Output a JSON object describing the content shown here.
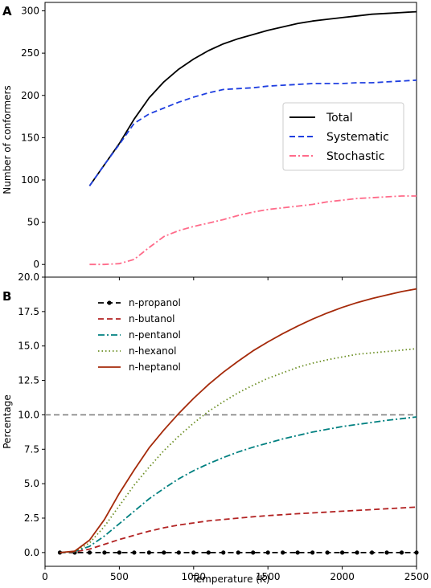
{
  "chart_data": [
    {
      "panel": "A",
      "type": "line",
      "title": "",
      "xlabel": "",
      "ylabel": "Number of conformers",
      "xlim": [
        0,
        2500
      ],
      "ylim": [
        -15,
        310
      ],
      "yticks": [
        0,
        50,
        100,
        150,
        200,
        250,
        300
      ],
      "xticks_labeled": false,
      "grid": false,
      "legend_position": "center-right",
      "series": [
        {
          "name": "Total",
          "color": "#000000",
          "dash": "solid",
          "x": [
            300,
            400,
            500,
            600,
            700,
            800,
            900,
            1000,
            1100,
            1200,
            1300,
            1400,
            1500,
            1600,
            1700,
            1800,
            1900,
            2000,
            2100,
            2200,
            2300,
            2400,
            2500
          ],
          "y": [
            93,
            118,
            143,
            172,
            197,
            216,
            231,
            243,
            253,
            261,
            267,
            272,
            277,
            281,
            285,
            288,
            290,
            292,
            294,
            296,
            297,
            298,
            299
          ]
        },
        {
          "name": "Systematic",
          "color": "#1f3fe0",
          "dash": "dashed",
          "x": [
            300,
            400,
            500,
            600,
            700,
            800,
            900,
            1000,
            1100,
            1200,
            1300,
            1400,
            1500,
            1600,
            1700,
            1800,
            1900,
            2000,
            2100,
            2200,
            2300,
            2400,
            2500
          ],
          "y": [
            93,
            118,
            142,
            167,
            178,
            185,
            192,
            198,
            203,
            207,
            208,
            209,
            211,
            212,
            213,
            214,
            214,
            214,
            215,
            215,
            216,
            217,
            218
          ]
        },
        {
          "name": "Stochastic",
          "color": "#ff6b8a",
          "dash": "dashdot",
          "x": [
            300,
            400,
            500,
            600,
            700,
            800,
            900,
            1000,
            1100,
            1200,
            1300,
            1400,
            1500,
            1600,
            1700,
            1800,
            1900,
            2000,
            2100,
            2200,
            2300,
            2400,
            2500
          ],
          "y": [
            0,
            0,
            1,
            6,
            20,
            33,
            40,
            45,
            49,
            53,
            58,
            62,
            65,
            67,
            69,
            71,
            74,
            76,
            78,
            79,
            80,
            81,
            81
          ]
        }
      ]
    },
    {
      "panel": "B",
      "type": "line",
      "title": "",
      "xlabel": "Temperature (K)",
      "ylabel": "Percentage",
      "xlim": [
        0,
        2500
      ],
      "ylim": [
        -1,
        20
      ],
      "xticks": [
        0,
        500,
        1000,
        1500,
        2000,
        2500
      ],
      "yticks": [
        "0.0",
        "2.5",
        "5.0",
        "7.5",
        "10.0",
        "12.5",
        "15.0",
        "17.5",
        "20.0"
      ],
      "grid": false,
      "legend_position": "upper-left",
      "reference_line": {
        "y": 10,
        "color": "#808080",
        "dash": "dashed"
      },
      "series": [
        {
          "name": "n-propanol",
          "color": "#000000",
          "dash": "dashed",
          "marker": "circle",
          "x": [
            100,
            200,
            300,
            400,
            500,
            600,
            700,
            800,
            900,
            1000,
            1100,
            1200,
            1300,
            1400,
            1500,
            1600,
            1700,
            1800,
            1900,
            2000,
            2100,
            2200,
            2300,
            2400,
            2500
          ],
          "y": [
            0,
            0,
            0,
            0,
            0,
            0,
            0,
            0,
            0,
            0,
            0,
            0,
            0,
            0,
            0,
            0,
            0,
            0,
            0,
            0,
            0,
            0,
            0,
            0,
            0
          ]
        },
        {
          "name": "n-butanol",
          "color": "#b22222",
          "dash": "dashed",
          "x": [
            100,
            200,
            300,
            400,
            500,
            600,
            700,
            800,
            900,
            1000,
            1100,
            1200,
            1300,
            1400,
            1500,
            1600,
            1700,
            1800,
            1900,
            2000,
            2100,
            2200,
            2300,
            2400,
            2500
          ],
          "y": [
            0,
            0.05,
            0.25,
            0.6,
            0.95,
            1.25,
            1.55,
            1.8,
            2.0,
            2.15,
            2.3,
            2.4,
            2.5,
            2.6,
            2.68,
            2.75,
            2.82,
            2.88,
            2.94,
            3.0,
            3.06,
            3.12,
            3.18,
            3.24,
            3.3
          ]
        },
        {
          "name": "n-pentanol",
          "color": "#008080",
          "dash": "dashdot",
          "x": [
            100,
            200,
            300,
            400,
            500,
            600,
            700,
            800,
            900,
            1000,
            1100,
            1200,
            1300,
            1400,
            1500,
            1600,
            1700,
            1800,
            1900,
            2000,
            2100,
            2200,
            2300,
            2400,
            2500
          ],
          "y": [
            0,
            0.08,
            0.45,
            1.2,
            2.1,
            3.0,
            3.9,
            4.65,
            5.35,
            5.95,
            6.45,
            6.9,
            7.3,
            7.65,
            7.95,
            8.25,
            8.5,
            8.75,
            8.95,
            9.15,
            9.3,
            9.45,
            9.6,
            9.72,
            9.85
          ]
        },
        {
          "name": "n-hexanol",
          "color": "#6b8e23",
          "dash": "dotted",
          "x": [
            100,
            200,
            300,
            400,
            500,
            600,
            700,
            800,
            900,
            1000,
            1100,
            1200,
            1300,
            1400,
            1500,
            1600,
            1700,
            1800,
            1900,
            2000,
            2100,
            2200,
            2300,
            2400,
            2500
          ],
          "y": [
            0,
            0.08,
            0.7,
            1.9,
            3.4,
            4.9,
            6.2,
            7.4,
            8.45,
            9.4,
            10.25,
            10.95,
            11.6,
            12.15,
            12.65,
            13.05,
            13.45,
            13.75,
            14.0,
            14.2,
            14.4,
            14.5,
            14.6,
            14.7,
            14.8
          ]
        },
        {
          "name": "n-heptanol",
          "color": "#a52a0a",
          "dash": "solid",
          "x": [
            100,
            200,
            300,
            400,
            500,
            600,
            700,
            800,
            900,
            1000,
            1100,
            1200,
            1300,
            1400,
            1500,
            1600,
            1700,
            1800,
            1900,
            2000,
            2100,
            2200,
            2300,
            2400,
            2500
          ],
          "y": [
            0,
            0.1,
            0.9,
            2.4,
            4.3,
            6.0,
            7.6,
            8.9,
            10.1,
            11.2,
            12.2,
            13.1,
            13.9,
            14.65,
            15.3,
            15.9,
            16.45,
            16.95,
            17.4,
            17.8,
            18.15,
            18.45,
            18.7,
            18.95,
            19.15
          ]
        }
      ]
    }
  ]
}
